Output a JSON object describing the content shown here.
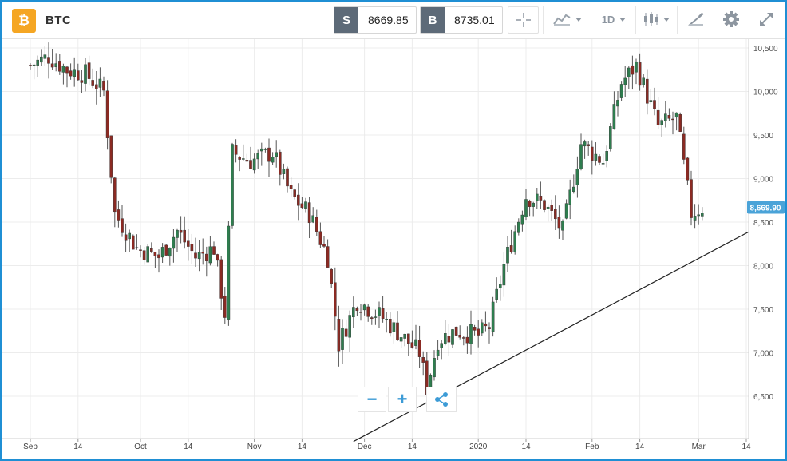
{
  "header": {
    "logo_glyph": "₿",
    "symbol": "BTC",
    "sell": {
      "label": "S",
      "price": "8669.85"
    },
    "buy": {
      "label": "B",
      "price": "8735.01"
    },
    "interval": "1D",
    "icons": [
      "crosshair-icon",
      "line-chart-icon",
      "candlestick-icon",
      "drawing-tools-icon",
      "gear-icon",
      "fullscreen-icon"
    ]
  },
  "colors": {
    "frame": "#1f8fd4",
    "up": "#2f7d4f",
    "down": "#8b2a23",
    "wick": "#555555",
    "price_tag": "#4aa3d8",
    "accent": "#3c9bd6"
  },
  "controls": {
    "zoom_out": "−",
    "zoom_in": "+"
  },
  "chart_data": {
    "type": "candlestick",
    "x_ticks": [
      "Sep",
      "14",
      "Oct",
      "14",
      "Nov",
      "14",
      "Dec",
      "14",
      "2020",
      "14",
      "Feb",
      "14",
      "Mar",
      "14"
    ],
    "y_ticks": [
      "10,500",
      "10,000",
      "9,500",
      "9,000",
      "8,500",
      "8,000",
      "7,500",
      "7,000",
      "6,500"
    ],
    "y_range": [
      6000,
      10700
    ],
    "last_price": "8,669.90",
    "grid": true,
    "trendline": {
      "from": [
        "2019-11-28",
        5980
      ],
      "to": [
        "2020-03-21",
        8530
      ]
    },
    "close_series": [
      {
        "date": "2019-09-01",
        "close": 10300
      },
      {
        "date": "2019-09-06",
        "close": 10400
      },
      {
        "date": "2019-09-11",
        "close": 10250
      },
      {
        "date": "2019-09-16",
        "close": 10200
      },
      {
        "date": "2019-09-21",
        "close": 10000
      },
      {
        "date": "2019-09-24",
        "close": 8600
      },
      {
        "date": "2019-09-30",
        "close": 8200
      },
      {
        "date": "2019-10-06",
        "close": 8100
      },
      {
        "date": "2019-10-11",
        "close": 8400
      },
      {
        "date": "2019-10-16",
        "close": 8100
      },
      {
        "date": "2019-10-21",
        "close": 8200
      },
      {
        "date": "2019-10-24",
        "close": 7450
      },
      {
        "date": "2019-10-26",
        "close": 9300
      },
      {
        "date": "2019-10-31",
        "close": 9200
      },
      {
        "date": "2019-11-06",
        "close": 9300
      },
      {
        "date": "2019-11-11",
        "close": 8800
      },
      {
        "date": "2019-11-16",
        "close": 8600
      },
      {
        "date": "2019-11-21",
        "close": 8100
      },
      {
        "date": "2019-11-24",
        "close": 7100
      },
      {
        "date": "2019-11-29",
        "close": 7600
      },
      {
        "date": "2019-12-06",
        "close": 7400
      },
      {
        "date": "2019-12-11",
        "close": 7200
      },
      {
        "date": "2019-12-16",
        "close": 7000
      },
      {
        "date": "2019-12-18",
        "close": 6600
      },
      {
        "date": "2019-12-21",
        "close": 7150
      },
      {
        "date": "2019-12-26",
        "close": 7250
      },
      {
        "date": "2020-01-01",
        "close": 7200
      },
      {
        "date": "2020-01-04",
        "close": 7300
      },
      {
        "date": "2020-01-08",
        "close": 8000
      },
      {
        "date": "2020-01-14",
        "close": 8800
      },
      {
        "date": "2020-01-19",
        "close": 8700
      },
      {
        "date": "2020-01-24",
        "close": 8400
      },
      {
        "date": "2020-01-29",
        "close": 9400
      },
      {
        "date": "2020-02-04",
        "close": 9200
      },
      {
        "date": "2020-02-09",
        "close": 10100
      },
      {
        "date": "2020-02-13",
        "close": 10300
      },
      {
        "date": "2020-02-19",
        "close": 9600
      },
      {
        "date": "2020-02-24",
        "close": 9700
      },
      {
        "date": "2020-02-28",
        "close": 8600
      },
      {
        "date": "2020-03-02",
        "close": 8670
      }
    ]
  }
}
